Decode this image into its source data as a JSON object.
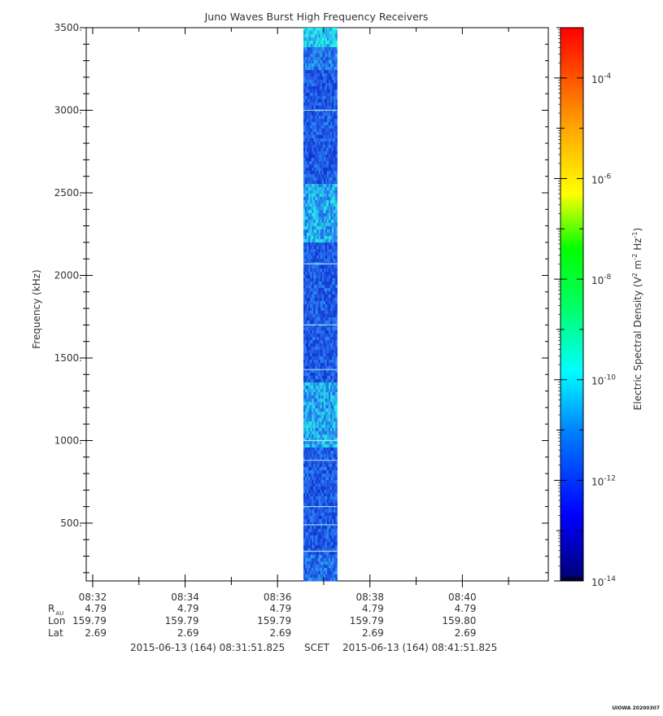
{
  "chart_data": {
    "type": "heatmap",
    "title": "Juno Waves Burst High Frequency Receivers",
    "ylabel": "Frequency (kHz)",
    "ylim": [
      150,
      3500
    ],
    "yticks": [
      "3500.",
      "3000.",
      "2500.",
      "2000.",
      "1500.",
      "1000.",
      "500."
    ],
    "ytick_values": [
      3500,
      3000,
      2500,
      2000,
      1500,
      1000,
      500
    ],
    "xticks": [
      "08:32",
      "08:34",
      "08:36",
      "08:38",
      "08:40"
    ],
    "xtick_minutes": [
      0.14,
      2.14,
      4.14,
      6.14,
      8.14
    ],
    "x_range_minutes": [
      0,
      10
    ],
    "data_window_minutes": [
      4.7,
      5.43
    ],
    "colorbar": {
      "label": "Electric Spectral Density (V² m⁻² Hz⁻¹)",
      "scale": "log",
      "range": [
        1e-14,
        0.001
      ],
      "ticks": [
        "-4",
        "-6",
        "-8",
        "-10",
        "-12",
        "-14"
      ],
      "tick_exponents": [
        -4,
        -6,
        -8,
        -10,
        -12,
        -14
      ]
    },
    "data_summary": "Single burst of data between about 08:36:35 and 08:37:15; densities mostly 1e-12 to 1e-11, brighter near 2300-2500 kHz and 1000-1300 kHz"
  },
  "ephemeris": {
    "rows": [
      {
        "label": "R",
        "label_sub": "AU",
        "values": [
          "4.79",
          "4.79",
          "4.79",
          "4.79",
          "4.79"
        ]
      },
      {
        "label": "Lon",
        "values": [
          "159.79",
          "159.79",
          "159.79",
          "159.79",
          "159.80"
        ]
      },
      {
        "label": "Lat",
        "values": [
          "2.69",
          "2.69",
          "2.69",
          "2.69",
          "2.69"
        ]
      }
    ]
  },
  "footer": {
    "start": "2015-06-13 (164) 08:31:51.825",
    "scet": "SCET",
    "end": "2015-06-13 (164) 08:41:51.825"
  },
  "stamp": "UIOWA 20200307",
  "colors": {
    "spectrogram_low": "#0a1fc8",
    "spectrogram_high": "#25f2e6"
  }
}
